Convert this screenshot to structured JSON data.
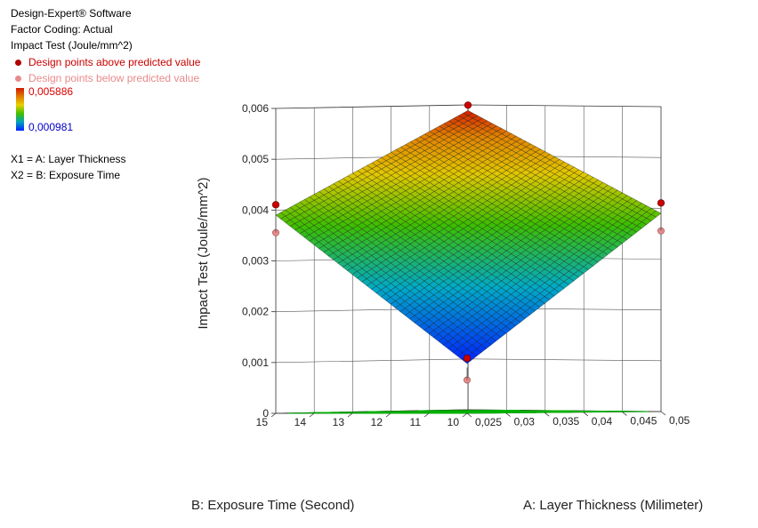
{
  "header": {
    "software": "Design-Expert® Software",
    "coding": "Factor Coding: Actual",
    "response": "Impact Test (Joule/mm^2)"
  },
  "legend": {
    "above": "Design points above predicted value",
    "below": "Design points below predicted value",
    "max_value": "0,005886",
    "min_value": "0,000981",
    "x1": "X1 = A: Layer Thickness",
    "x2": "X2 = B: Exposure Time",
    "above_color": "#cc0000",
    "below_color": "#e98a8a"
  },
  "chart_data": {
    "type": "surface",
    "zlabel": "Impact Test (Joule/mm^2)",
    "xlabel": "A: Layer Thickness (Milimeter)",
    "ylabel": "B: Exposure Time (Second)",
    "x_ticks": [
      "0,025",
      "0,03",
      "0,035",
      "0,04",
      "0,045",
      "0,05"
    ],
    "y_ticks": [
      "10",
      "11",
      "12",
      "13",
      "14",
      "15"
    ],
    "z_ticks": [
      "0",
      "0,001",
      "0,002",
      "0,003",
      "0,004",
      "0,005",
      "0,006"
    ],
    "xlim": [
      0.025,
      0.05
    ],
    "ylim": [
      10,
      15
    ],
    "zlim": [
      0,
      0.006
    ],
    "surface_corners": [
      {
        "x": 0.025,
        "y": 10,
        "z": 0.00098
      },
      {
        "x": 0.05,
        "y": 10,
        "z": 0.0039
      },
      {
        "x": 0.025,
        "y": 15,
        "z": 0.0039
      },
      {
        "x": 0.05,
        "y": 15,
        "z": 0.00589
      }
    ],
    "design_points_above": [
      {
        "x": 0.025,
        "y": 10,
        "z": 0.00098
      },
      {
        "x": 0.05,
        "y": 10,
        "z": 0.004
      },
      {
        "x": 0.025,
        "y": 15,
        "z": 0.004
      },
      {
        "x": 0.05,
        "y": 15,
        "z": 0.00589
      }
    ],
    "design_points_below": [
      {
        "x": 0.025,
        "y": 10,
        "z": 0.0009
      },
      {
        "x": 0.05,
        "y": 10,
        "z": 0.0038
      },
      {
        "x": 0.025,
        "y": 15,
        "z": 0.0038
      }
    ],
    "grid": true
  }
}
